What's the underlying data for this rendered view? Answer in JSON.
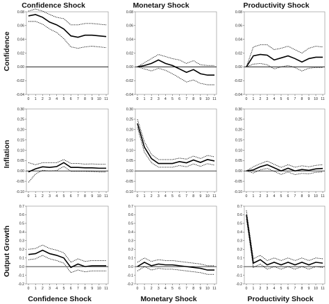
{
  "column_titles_top": [
    "Confidence Shock",
    "Monetary Shock",
    "Productivity Shock"
  ],
  "column_titles_bottom": [
    "Confidence Shock",
    "Monetary Shock",
    "Productivity Shock"
  ],
  "row_titles": [
    "Confidence",
    "Inflation",
    "Output Growth"
  ],
  "x_ticks": [
    "0",
    "1",
    "2",
    "3",
    "4",
    "5",
    "6",
    "7",
    "8",
    "9",
    "10",
    "11"
  ],
  "chart_data": [
    {
      "type": "line",
      "row": 0,
      "col": 0,
      "x": [
        0,
        1,
        2,
        3,
        4,
        5,
        6,
        7,
        8,
        9,
        10,
        11
      ],
      "ylim": [
        -0.04,
        0.08
      ],
      "yticks": [
        "-0.04",
        "-0.02",
        "0.00",
        "0.02",
        "0.04",
        "0.06",
        "0.08"
      ],
      "ytick_values": [
        -0.04,
        -0.02,
        0,
        0.02,
        0.04,
        0.06,
        0.08
      ],
      "series": [
        {
          "values": [
            0.074,
            0.076,
            0.072,
            0.065,
            0.061,
            0.055,
            0.045,
            0.043,
            0.046,
            0.046,
            0.045,
            0.044
          ]
        },
        {
          "values": [
            0.081,
            0.084,
            0.081,
            0.076,
            0.072,
            0.07,
            0.061,
            0.061,
            0.063,
            0.063,
            0.062,
            0.061
          ]
        },
        {
          "values": [
            0.066,
            0.066,
            0.062,
            0.055,
            0.05,
            0.041,
            0.029,
            0.027,
            0.029,
            0.03,
            0.029,
            0.028
          ]
        }
      ]
    },
    {
      "type": "line",
      "row": 0,
      "col": 1,
      "x": [
        0,
        1,
        2,
        3,
        4,
        5,
        6,
        7,
        8,
        9,
        10,
        11
      ],
      "ylim": [
        -0.04,
        0.08
      ],
      "yticks": [
        "-0.04",
        "-0.02",
        "0.00",
        "0.02",
        "0.04",
        "0.06",
        "0.08"
      ],
      "ytick_values": [
        -0.04,
        -0.02,
        0,
        0.02,
        0.04,
        0.06,
        0.08
      ],
      "series": [
        {
          "values": [
            0,
            0.002,
            0.005,
            0.01,
            0.005,
            0.002,
            -0.003,
            -0.008,
            -0.004,
            -0.01,
            -0.012,
            -0.012
          ]
        },
        {
          "values": [
            0,
            0.006,
            0.012,
            0.018,
            0.015,
            0.012,
            0.01,
            0.005,
            0.009,
            0.003,
            0.002,
            0.002
          ]
        },
        {
          "values": [
            0,
            -0.003,
            -0.006,
            -0.002,
            -0.005,
            -0.01,
            -0.016,
            -0.022,
            -0.019,
            -0.024,
            -0.026,
            -0.026
          ]
        }
      ]
    },
    {
      "type": "line",
      "row": 0,
      "col": 2,
      "x": [
        0,
        1,
        2,
        3,
        4,
        5,
        6,
        7,
        8,
        9,
        10,
        11
      ],
      "ylim": [
        -0.04,
        0.08
      ],
      "yticks": [
        "-0.04",
        "-0.02",
        "0.00",
        "0.02",
        "0.04",
        "0.06",
        "0.08"
      ],
      "ytick_values": [
        -0.04,
        -0.02,
        0,
        0.02,
        0.04,
        0.06,
        0.08
      ],
      "series": [
        {
          "values": [
            0,
            0.016,
            0.018,
            0.017,
            0.01,
            0.013,
            0.016,
            0.012,
            0.007,
            0.012,
            0.014,
            0.014
          ]
        },
        {
          "values": [
            0,
            0.029,
            0.032,
            0.032,
            0.025,
            0.027,
            0.03,
            0.025,
            0.02,
            0.027,
            0.03,
            0.029
          ]
        },
        {
          "values": [
            0,
            0.004,
            0.005,
            0.003,
            -0.003,
            0,
            0.002,
            -0.001,
            -0.006,
            -0.002,
            -0.001,
            -0.001
          ]
        }
      ]
    },
    {
      "type": "line",
      "row": 1,
      "col": 0,
      "x": [
        0,
        1,
        2,
        3,
        4,
        5,
        6,
        7,
        8,
        9,
        10,
        11
      ],
      "ylim": [
        -0.1,
        0.3
      ],
      "yticks": [
        "-0.10",
        "-0.05",
        "0.00",
        "0.05",
        "0.10",
        "0.15",
        "0.20",
        "0.25",
        "0.30"
      ],
      "ytick_values": [
        -0.1,
        -0.05,
        0,
        0.05,
        0.1,
        0.15,
        0.2,
        0.25,
        0.3
      ],
      "series": [
        {
          "values": [
            -0.005,
            0.01,
            0.02,
            0.017,
            0.021,
            0.04,
            0.017,
            0.017,
            0.015,
            0.015,
            0.013,
            0.013
          ]
        },
        {
          "values": [
            0.04,
            0.03,
            0.04,
            0.04,
            0.04,
            0.055,
            0.036,
            0.036,
            0.033,
            0.034,
            0.032,
            0.032
          ]
        },
        {
          "values": [
            -0.055,
            -0.015,
            0.003,
            0,
            0.002,
            0.022,
            -0.002,
            -0.002,
            -0.002,
            -0.003,
            -0.005,
            -0.005
          ]
        }
      ]
    },
    {
      "type": "line",
      "row": 1,
      "col": 1,
      "x": [
        0,
        1,
        2,
        3,
        4,
        5,
        6,
        7,
        8,
        9,
        10,
        11
      ],
      "ylim": [
        -0.1,
        0.3
      ],
      "yticks": [
        "-0.10",
        "-0.05",
        "0.00",
        "0.05",
        "0.10",
        "0.15",
        "0.20",
        "0.25",
        "0.30"
      ],
      "ytick_values": [
        -0.1,
        -0.05,
        0,
        0.05,
        0.1,
        0.15,
        0.2,
        0.25,
        0.3
      ],
      "series": [
        {
          "values": [
            0.23,
            0.115,
            0.06,
            0.036,
            0.036,
            0.036,
            0.045,
            0.039,
            0.053,
            0.041,
            0.055,
            0.048
          ]
        },
        {
          "values": [
            0.25,
            0.14,
            0.08,
            0.055,
            0.055,
            0.055,
            0.062,
            0.057,
            0.072,
            0.06,
            0.075,
            0.068
          ]
        },
        {
          "values": [
            0.21,
            0.09,
            0.04,
            0.018,
            0.018,
            0.018,
            0.026,
            0.02,
            0.034,
            0.022,
            0.035,
            0.028
          ]
        }
      ]
    },
    {
      "type": "line",
      "row": 1,
      "col": 2,
      "x": [
        0,
        1,
        2,
        3,
        4,
        5,
        6,
        7,
        8,
        9,
        10,
        11
      ],
      "ylim": [
        -0.1,
        0.3
      ],
      "yticks": [
        "-0.10",
        "-0.05",
        "0.00",
        "0.05",
        "0.10",
        "0.15",
        "0.20",
        "0.25",
        "0.30"
      ],
      "ytick_values": [
        -0.1,
        -0.05,
        0,
        0.05,
        0.1,
        0.15,
        0.2,
        0.25,
        0.3
      ],
      "series": [
        {
          "values": [
            0,
            0.005,
            0.02,
            0.03,
            0.015,
            0,
            0.013,
            0,
            0.007,
            0.003,
            0.01,
            0.012
          ]
        },
        {
          "values": [
            0,
            0.02,
            0.035,
            0.048,
            0.032,
            0.017,
            0.03,
            0.018,
            0.025,
            0.02,
            0.027,
            0.03
          ]
        },
        {
          "values": [
            0,
            -0.01,
            0.005,
            0.012,
            -0.002,
            -0.017,
            -0.005,
            -0.018,
            -0.012,
            -0.014,
            -0.007,
            -0.005
          ]
        }
      ]
    },
    {
      "type": "line",
      "row": 2,
      "col": 0,
      "x": [
        0,
        1,
        2,
        3,
        4,
        5,
        6,
        7,
        8,
        9,
        10,
        11
      ],
      "ylim": [
        -0.2,
        0.7
      ],
      "yticks": [
        "-0.2",
        "-0.1",
        "0.0",
        "0.1",
        "0.2",
        "0.3",
        "0.4",
        "0.5",
        "0.6",
        "0.7"
      ],
      "ytick_values": [
        -0.2,
        -0.1,
        0,
        0.1,
        0.2,
        0.3,
        0.4,
        0.5,
        0.6,
        0.7
      ],
      "series": [
        {
          "values": [
            0.14,
            0.15,
            0.19,
            0.15,
            0.13,
            0.1,
            -0.01,
            0.03,
            0,
            0.01,
            0.01,
            0.01
          ]
        },
        {
          "values": [
            0.2,
            0.21,
            0.25,
            0.21,
            0.19,
            0.16,
            0.05,
            0.09,
            0.06,
            0.07,
            0.07,
            0.07
          ]
        },
        {
          "values": [
            0.08,
            0.09,
            0.13,
            0.09,
            0.07,
            0.04,
            -0.07,
            -0.04,
            -0.06,
            -0.05,
            -0.05,
            -0.05
          ]
        }
      ]
    },
    {
      "type": "line",
      "row": 2,
      "col": 1,
      "x": [
        0,
        1,
        2,
        3,
        4,
        5,
        6,
        7,
        8,
        9,
        10,
        11
      ],
      "ylim": [
        -0.2,
        0.7
      ],
      "yticks": [
        "-0.2",
        "-0.1",
        "0.0",
        "0.1",
        "0.2",
        "0.3",
        "0.4",
        "0.5",
        "0.6",
        "0.7"
      ],
      "ytick_values": [
        -0.2,
        -0.1,
        0,
        0.1,
        0.2,
        0.3,
        0.4,
        0.5,
        0.6,
        0.7
      ],
      "series": [
        {
          "values": [
            0,
            0.05,
            0.01,
            0.03,
            0.02,
            0.02,
            0.01,
            0,
            -0.01,
            -0.02,
            -0.04,
            -0.04
          ]
        },
        {
          "values": [
            0.05,
            0.1,
            0.06,
            0.08,
            0.07,
            0.07,
            0.06,
            0.05,
            0.04,
            0.03,
            0.01,
            0.01
          ]
        },
        {
          "values": [
            -0.05,
            0,
            -0.04,
            -0.02,
            -0.03,
            -0.03,
            -0.04,
            -0.05,
            -0.06,
            -0.07,
            -0.09,
            -0.09
          ]
        }
      ]
    },
    {
      "type": "line",
      "row": 2,
      "col": 2,
      "x": [
        0,
        1,
        2,
        3,
        4,
        5,
        6,
        7,
        8,
        9,
        10,
        11
      ],
      "ylim": [
        -0.2,
        0.7
      ],
      "yticks": [
        "-0.2",
        "-0.1",
        "0.0",
        "0.1",
        "0.2",
        "0.3",
        "0.4",
        "0.5",
        "0.6",
        "0.7"
      ],
      "ytick_values": [
        -0.2,
        -0.1,
        0,
        0.1,
        0.2,
        0.3,
        0.4,
        0.5,
        0.6,
        0.7
      ],
      "series": [
        {
          "values": [
            0.6,
            0.04,
            0.08,
            0.02,
            0.05,
            0.02,
            0.05,
            0.02,
            0.05,
            0.02,
            0.05,
            0.04
          ]
        },
        {
          "values": [
            0.65,
            0.09,
            0.13,
            0.07,
            0.1,
            0.07,
            0.1,
            0.07,
            0.1,
            0.07,
            0.1,
            0.09
          ]
        },
        {
          "values": [
            0.55,
            -0.01,
            0.03,
            -0.03,
            0,
            -0.03,
            0,
            -0.03,
            0,
            -0.03,
            0,
            -0.01
          ]
        }
      ]
    }
  ]
}
